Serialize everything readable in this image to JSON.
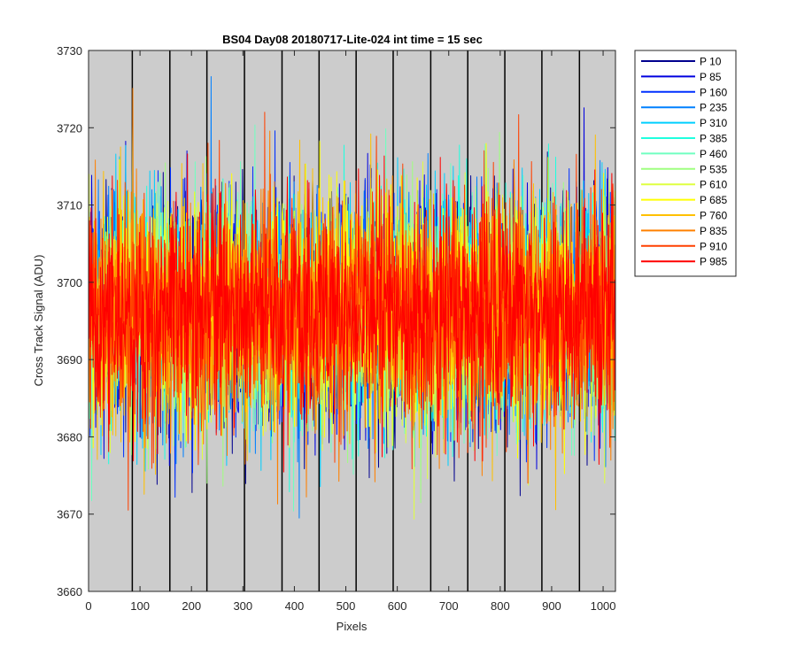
{
  "chart_data": {
    "type": "line",
    "title": "BS04 Day08 20180717-Lite-024 int time = 15 sec",
    "xlabel": "Pixels",
    "ylabel": "Cross Track Signal (ADU)",
    "xlim": [
      0,
      1024
    ],
    "ylim": [
      3660,
      3730
    ],
    "xticks": [
      0,
      100,
      200,
      300,
      400,
      500,
      600,
      700,
      800,
      900,
      1000
    ],
    "yticks": [
      3660,
      3670,
      3680,
      3690,
      3700,
      3710,
      3720,
      3730
    ],
    "background": "#cccccc",
    "grid": false,
    "legend_position": "outside-right-top",
    "segment_boundaries_x": [
      85,
      158,
      230,
      303,
      376,
      448,
      520,
      592,
      665,
      737,
      809,
      881,
      954
    ],
    "noise_model": {
      "mean": 3696,
      "sd": 7.5,
      "points_per_series": 1024
    },
    "series": [
      {
        "name": "P 10",
        "color": "#00008f"
      },
      {
        "name": "P 85",
        "color": "#0000df"
      },
      {
        "name": "P 160",
        "color": "#0030ff"
      },
      {
        "name": "P 235",
        "color": "#0080ff"
      },
      {
        "name": "P 310",
        "color": "#00cfff"
      },
      {
        "name": "P 385",
        "color": "#20ffdf"
      },
      {
        "name": "P 460",
        "color": "#70ffc0"
      },
      {
        "name": "P 535",
        "color": "#9fff80"
      },
      {
        "name": "P 610",
        "color": "#dfff40"
      },
      {
        "name": "P 685",
        "color": "#ffff00"
      },
      {
        "name": "P 760",
        "color": "#ffc000"
      },
      {
        "name": "P 835",
        "color": "#ff8000"
      },
      {
        "name": "P 910",
        "color": "#ff4000"
      },
      {
        "name": "P 985",
        "color": "#ff0000"
      }
    ]
  }
}
